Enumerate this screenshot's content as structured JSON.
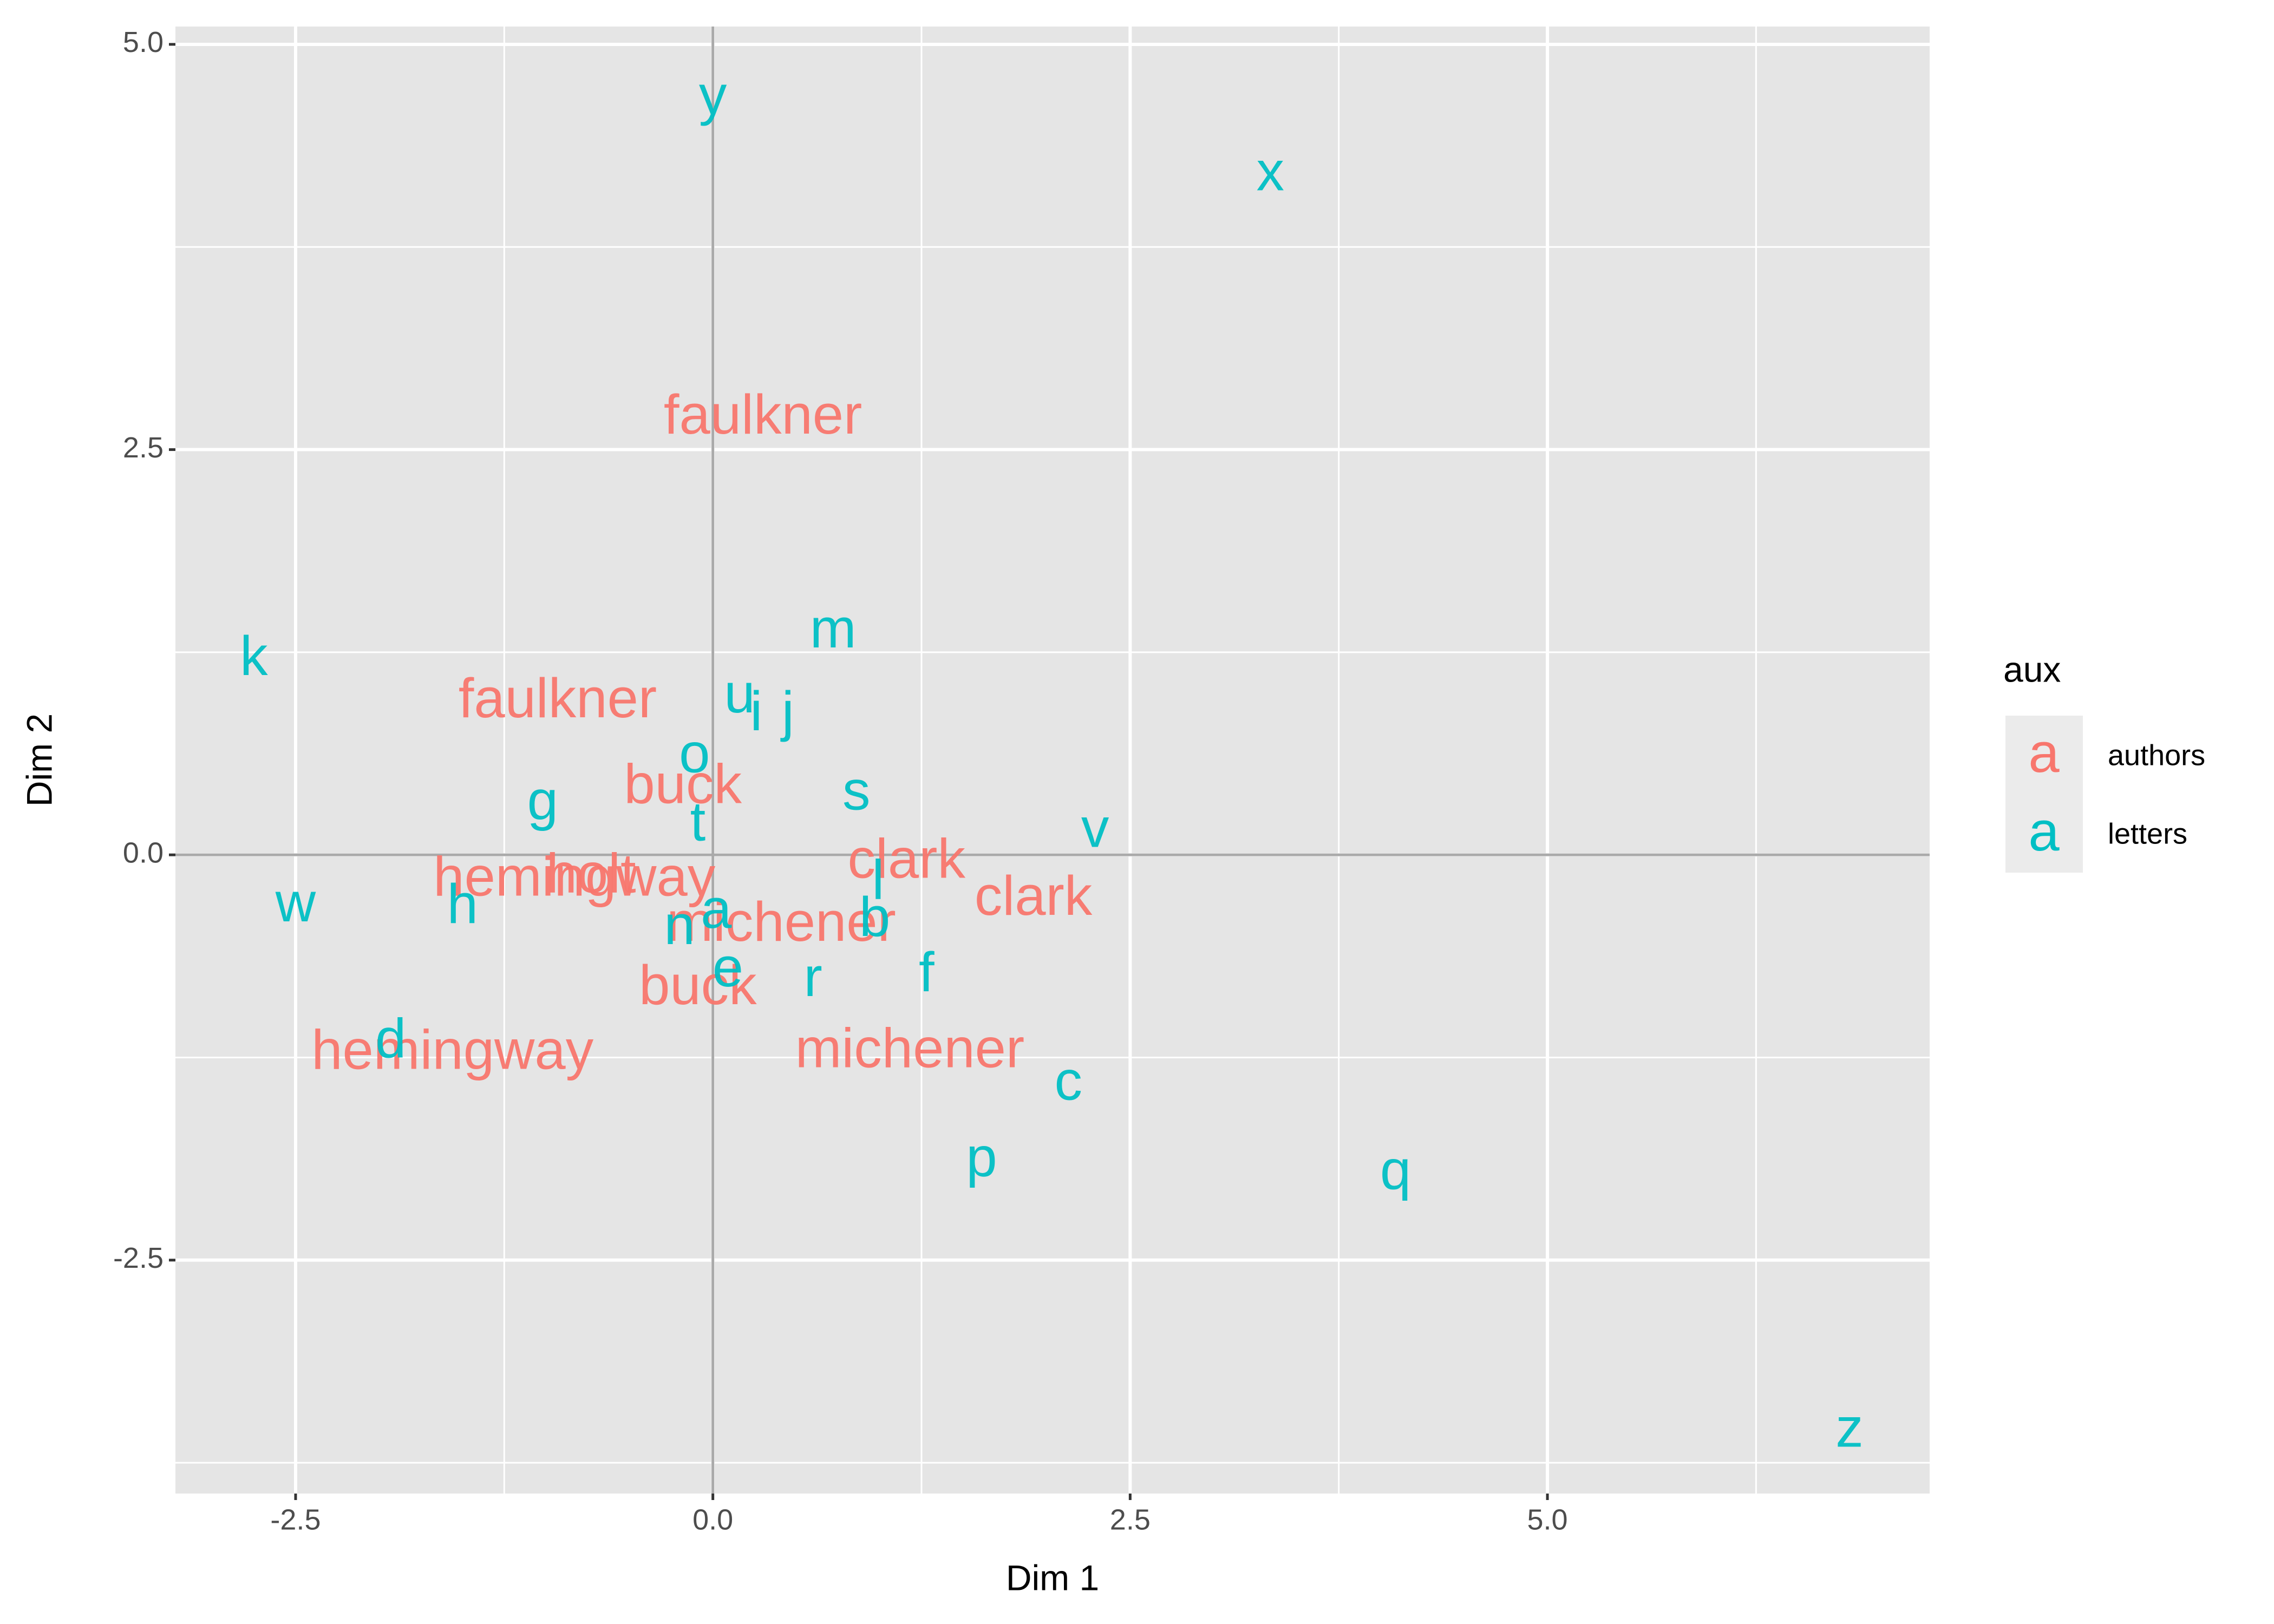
{
  "chart_data": {
    "type": "text-scatter",
    "xlabel": "Dim 1",
    "ylabel": "Dim 2",
    "legend_title": "aux",
    "legend_key": "a",
    "legend_position": "right",
    "xlim": [
      -3.22,
      7.29
    ],
    "ylim": [
      -3.94,
      5.11
    ],
    "xticks": [
      -2.5,
      {
        "value": 0,
        "label": "0.0"
      },
      2.5,
      {
        "value": 5,
        "label": "5.0"
      }
    ],
    "yticks": [
      {
        "value": -2.5,
        "label": "-2.5"
      },
      {
        "value": 0,
        "label": "0.0"
      },
      {
        "value": 2.5,
        "label": "2.5"
      },
      {
        "value": 5,
        "label": "5.0"
      }
    ],
    "grid": true,
    "hline": 0,
    "vline": 0,
    "series": [
      {
        "name": "authors",
        "color": "#F8766D",
        "labels": [
          "faulkner",
          "faulkner",
          "buck",
          "clark",
          "hemingway",
          "holt",
          "clark",
          "michener",
          "buck",
          "hemingway",
          "michener"
        ],
        "x": [
          0.3,
          -0.93,
          -0.18,
          1.16,
          -0.83,
          -0.73,
          1.92,
          0.41,
          -0.09,
          -1.56,
          1.18
        ],
        "values": [
          2.69,
          0.94,
          0.41,
          -0.05,
          -0.16,
          -0.14,
          -0.28,
          -0.44,
          -0.83,
          -1.23,
          -1.22
        ]
      },
      {
        "name": "letters",
        "color": "#00BFC4",
        "labels": [
          "y",
          "x",
          "m",
          "k",
          "u",
          "i",
          "j",
          "o",
          "s",
          "g",
          "t",
          "v",
          "w",
          "h",
          "l",
          "a",
          "n",
          "b",
          "e",
          "r",
          "f",
          "d",
          "c",
          "p",
          "q",
          "z"
        ],
        "x": [
          0,
          3.34,
          0.72,
          -2.75,
          0.16,
          0.26,
          0.45,
          -0.11,
          0.86,
          -1.02,
          -0.09,
          2.29,
          -2.5,
          -1.5,
          0.99,
          0.02,
          -0.2,
          0.97,
          0.09,
          0.6,
          1.28,
          -1.93,
          2.13,
          1.61,
          4.09,
          6.81
        ],
        "values": [
          4.66,
          4.19,
          1.37,
          1.2,
          0.97,
          0.86,
          0.86,
          0.6,
          0.37,
          0.31,
          0.18,
          0.14,
          -0.32,
          -0.33,
          -0.18,
          -0.36,
          -0.46,
          -0.41,
          -0.72,
          -0.78,
          -0.75,
          -1.16,
          -1.42,
          -1.89,
          -1.97,
          -3.56
        ]
      }
    ]
  }
}
